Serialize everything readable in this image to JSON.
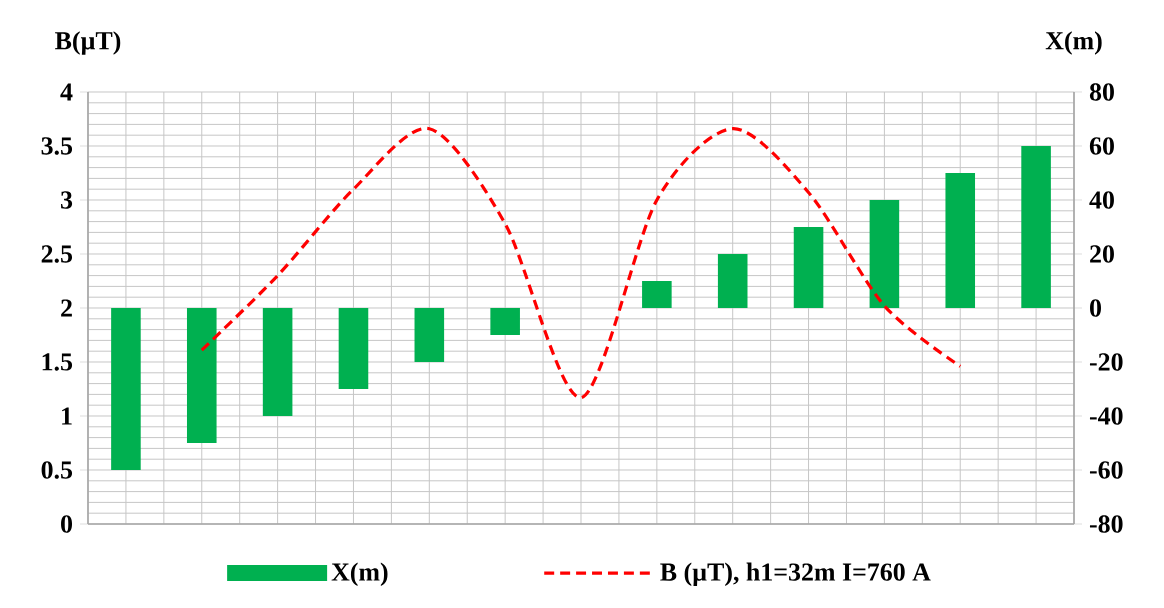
{
  "chart_data": {
    "type": "bar",
    "ylabel": "B(µT)",
    "y2label": "X(m)",
    "categories": [
      null,
      null,
      null,
      null,
      null,
      null,
      null,
      null,
      null,
      null,
      null,
      null,
      null
    ],
    "series": [
      {
        "name": "X(m)",
        "axis": "y2",
        "color": "#00b050",
        "values": [
          -60,
          -50,
          -40,
          -30,
          -20,
          -10,
          0,
          10,
          20,
          30,
          40,
          50,
          60
        ]
      },
      {
        "name": "B (µT), h1=32m I=760 A",
        "type": "line",
        "axis": "y",
        "color": "#ff0000",
        "line_style": "dashed",
        "marker": "none",
        "values": [
          null,
          1.61,
          2.3,
          3.1,
          3.66,
          2.78,
          1.17,
          3.0,
          3.66,
          3.07,
          2.02,
          1.46,
          null
        ]
      }
    ],
    "ylim": [
      0,
      4
    ],
    "yticks": [
      0,
      0.5,
      1,
      1.5,
      2,
      2.5,
      3,
      3.5,
      4
    ],
    "y2lim": [
      -80,
      80
    ],
    "y2ticks": [
      -80,
      -60,
      -40,
      -20,
      0,
      20,
      40,
      60,
      80
    ],
    "grid": true,
    "legend": "bottom"
  }
}
